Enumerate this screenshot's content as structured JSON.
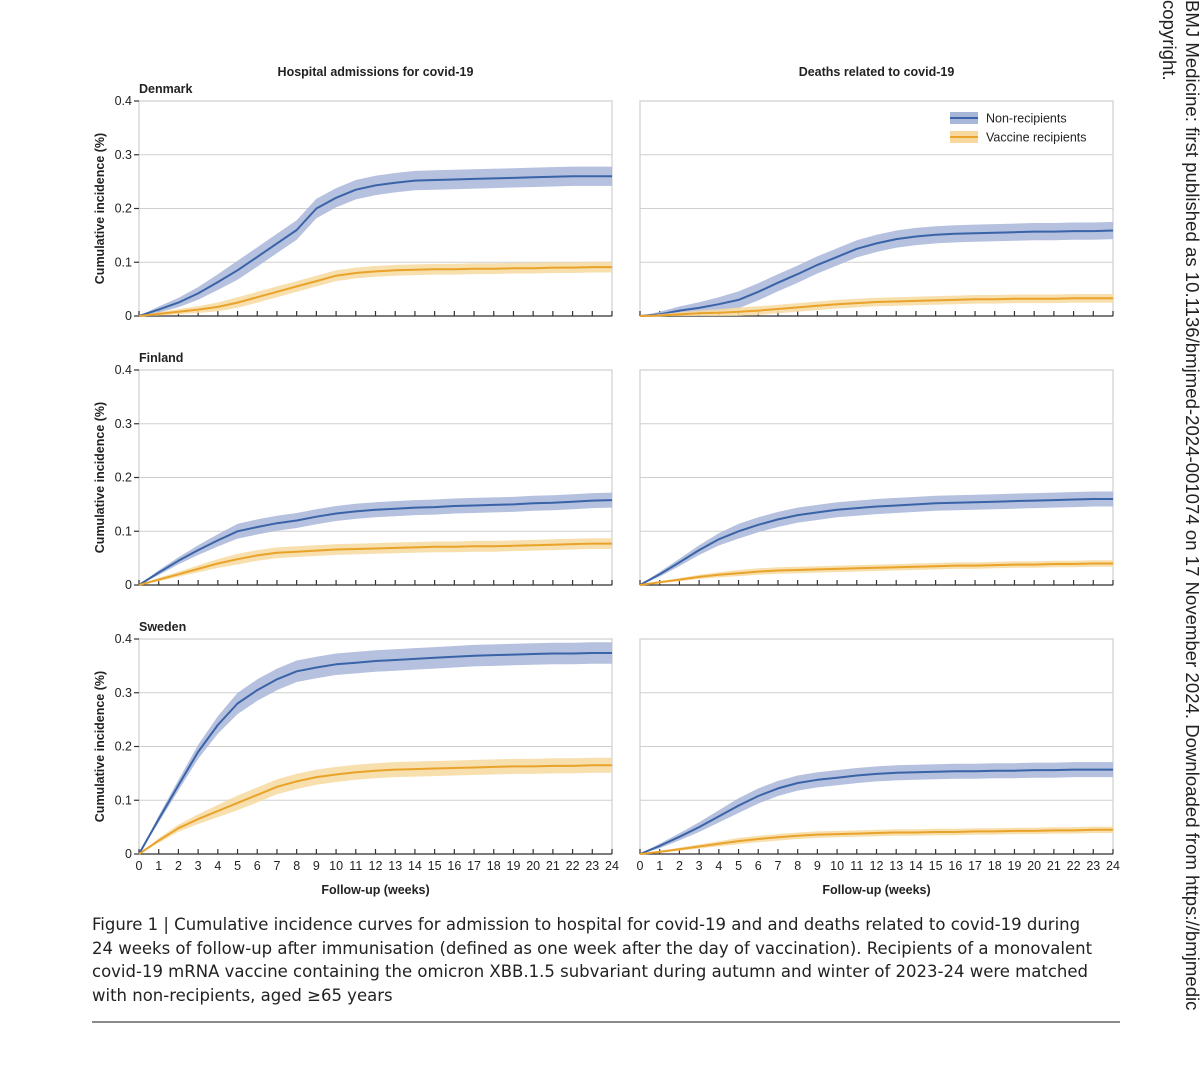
{
  "colors": {
    "non_recipients": "#3a63a8",
    "non_recipients_band": "#a8b6d8",
    "vaccine_recipients": "#e9a32a",
    "vaccine_recipients_band": "#f7d9a0"
  },
  "chart_data": {
    "type": "line",
    "column_titles": [
      "Hospital admissions for covid-19",
      "Deaths related to covid-19"
    ],
    "row_titles": [
      "Denmark",
      "Finland",
      "Sweden"
    ],
    "ylabel": "Cumulative incidence (%)",
    "xlabel": "Follow-up (weeks)",
    "ylim": [
      0,
      0.4
    ],
    "yticks": [
      "0",
      "0.1",
      "0.2",
      "0.3",
      "0.4"
    ],
    "xlim": [
      0,
      24
    ],
    "xticks": [
      "0",
      "1",
      "2",
      "3",
      "4",
      "5",
      "6",
      "7",
      "8",
      "9",
      "10",
      "11",
      "12",
      "13",
      "14",
      "15",
      "16",
      "17",
      "18",
      "19",
      "20",
      "21",
      "22",
      "23",
      "24"
    ],
    "legend": {
      "placement": "top-right",
      "entries": [
        "Non-recipients",
        "Vaccine recipients"
      ]
    },
    "x": [
      0,
      1,
      2,
      3,
      4,
      5,
      6,
      7,
      8,
      9,
      10,
      11,
      12,
      13,
      14,
      15,
      16,
      17,
      18,
      19,
      20,
      21,
      22,
      23,
      24
    ],
    "panels": [
      {
        "row": "Denmark",
        "column": "Hospital admissions for covid-19",
        "series": [
          {
            "name": "Non-recipients",
            "values": [
              0,
              0.012,
              0.025,
              0.042,
              0.063,
              0.085,
              0.11,
              0.135,
              0.16,
              0.2,
              0.22,
              0.235,
              0.243,
              0.248,
              0.252,
              0.253,
              0.254,
              0.255,
              0.256,
              0.257,
              0.258,
              0.259,
              0.26,
              0.26,
              0.26
            ],
            "ci": 0.018
          },
          {
            "name": "Vaccine recipients",
            "values": [
              0,
              0.004,
              0.008,
              0.012,
              0.017,
              0.025,
              0.035,
              0.045,
              0.055,
              0.065,
              0.075,
              0.08,
              0.083,
              0.085,
              0.086,
              0.087,
              0.087,
              0.088,
              0.088,
              0.089,
              0.089,
              0.09,
              0.09,
              0.091,
              0.091
            ],
            "ci": 0.01
          }
        ]
      },
      {
        "row": "Denmark",
        "column": "Deaths related to covid-19",
        "series": [
          {
            "name": "Non-recipients",
            "values": [
              0,
              0.003,
              0.01,
              0.015,
              0.022,
              0.03,
              0.045,
              0.062,
              0.078,
              0.095,
              0.11,
              0.125,
              0.135,
              0.143,
              0.148,
              0.151,
              0.153,
              0.154,
              0.155,
              0.156,
              0.157,
              0.157,
              0.158,
              0.158,
              0.159
            ],
            "ci": 0.016
          },
          {
            "name": "Vaccine recipients",
            "values": [
              0,
              0.001,
              0.003,
              0.005,
              0.006,
              0.008,
              0.01,
              0.013,
              0.016,
              0.019,
              0.022,
              0.024,
              0.026,
              0.027,
              0.028,
              0.029,
              0.03,
              0.031,
              0.031,
              0.032,
              0.032,
              0.032,
              0.033,
              0.033,
              0.033
            ],
            "ci": 0.008
          }
        ]
      },
      {
        "row": "Finland",
        "column": "Hospital admissions for covid-19",
        "series": [
          {
            "name": "Non-recipients",
            "values": [
              0,
              0.023,
              0.045,
              0.065,
              0.083,
              0.1,
              0.108,
              0.115,
              0.12,
              0.127,
              0.133,
              0.137,
              0.14,
              0.142,
              0.144,
              0.145,
              0.147,
              0.148,
              0.149,
              0.15,
              0.152,
              0.153,
              0.155,
              0.157,
              0.158
            ],
            "ci": 0.014
          },
          {
            "name": "Vaccine recipients",
            "values": [
              0,
              0.01,
              0.02,
              0.03,
              0.04,
              0.048,
              0.055,
              0.06,
              0.062,
              0.064,
              0.066,
              0.067,
              0.068,
              0.069,
              0.07,
              0.071,
              0.071,
              0.072,
              0.072,
              0.073,
              0.074,
              0.075,
              0.076,
              0.077,
              0.077
            ],
            "ci": 0.01
          }
        ]
      },
      {
        "row": "Finland",
        "column": "Deaths related to covid-19",
        "series": [
          {
            "name": "Non-recipients",
            "values": [
              0,
              0.02,
              0.042,
              0.065,
              0.085,
              0.1,
              0.112,
              0.122,
              0.13,
              0.135,
              0.14,
              0.143,
              0.146,
              0.148,
              0.15,
              0.152,
              0.153,
              0.154,
              0.155,
              0.156,
              0.157,
              0.158,
              0.159,
              0.16,
              0.16
            ],
            "ci": 0.014
          },
          {
            "name": "Vaccine recipients",
            "values": [
              0,
              0.005,
              0.01,
              0.015,
              0.019,
              0.022,
              0.025,
              0.027,
              0.028,
              0.029,
              0.03,
              0.031,
              0.032,
              0.033,
              0.034,
              0.035,
              0.036,
              0.036,
              0.037,
              0.038,
              0.038,
              0.039,
              0.039,
              0.04,
              0.04
            ],
            "ci": 0.006
          }
        ]
      },
      {
        "row": "Sweden",
        "column": "Hospital admissions for covid-19",
        "series": [
          {
            "name": "Non-recipients",
            "values": [
              0,
              0.065,
              0.128,
              0.19,
              0.24,
              0.28,
              0.305,
              0.325,
              0.34,
              0.347,
              0.353,
              0.356,
              0.359,
              0.361,
              0.363,
              0.365,
              0.367,
              0.369,
              0.37,
              0.371,
              0.372,
              0.373,
              0.373,
              0.374,
              0.374
            ],
            "ci": 0.02
          },
          {
            "name": "Vaccine recipients",
            "values": [
              0,
              0.025,
              0.048,
              0.065,
              0.08,
              0.095,
              0.11,
              0.125,
              0.135,
              0.143,
              0.148,
              0.152,
              0.155,
              0.157,
              0.158,
              0.159,
              0.16,
              0.161,
              0.162,
              0.163,
              0.163,
              0.164,
              0.164,
              0.165,
              0.165
            ],
            "ci": 0.014
          }
        ]
      },
      {
        "row": "Sweden",
        "column": "Deaths related to covid-19",
        "series": [
          {
            "name": "Non-recipients",
            "values": [
              0,
              0.015,
              0.032,
              0.05,
              0.07,
              0.09,
              0.108,
              0.122,
              0.132,
              0.138,
              0.142,
              0.146,
              0.149,
              0.151,
              0.152,
              0.153,
              0.154,
              0.154,
              0.155,
              0.155,
              0.156,
              0.156,
              0.157,
              0.157,
              0.157
            ],
            "ci": 0.014
          },
          {
            "name": "Vaccine recipients",
            "values": [
              0,
              0.004,
              0.009,
              0.014,
              0.019,
              0.024,
              0.028,
              0.031,
              0.034,
              0.036,
              0.037,
              0.038,
              0.039,
              0.04,
              0.04,
              0.041,
              0.041,
              0.042,
              0.042,
              0.043,
              0.043,
              0.044,
              0.044,
              0.045,
              0.045
            ],
            "ci": 0.006
          }
        ]
      }
    ]
  },
  "caption": "Figure 1 | Cumulative incidence curves for admission to hospital for covid-19 and and deaths related to covid-19 during 24 weeks of follow-up after immunisation (defined as one week after the day of vaccination). Recipients of a monovalent covid-19 mRNA vaccine containing the omicron XBB.1.5 subvariant during autumn and winter of 2023-24 were matched with non-recipients, aged ≥65 years",
  "side_note": "BMJ Medicine: first published as 10.1136/bmjmed-2024-001074 on 17 November 2024. Downloaded from https://bmjmedic copyright."
}
